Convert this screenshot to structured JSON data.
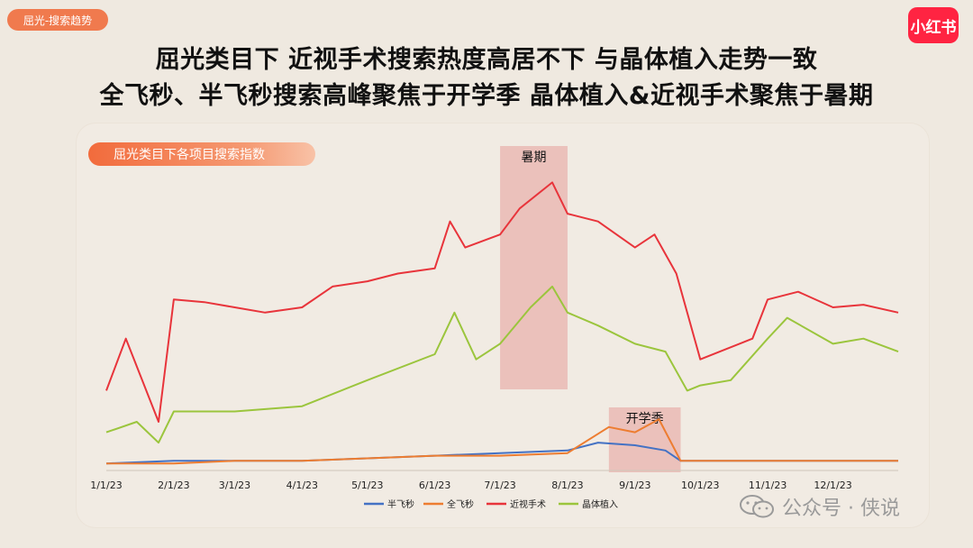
{
  "header": {
    "tag": "屈光-搜索趋势",
    "logo_text": "小红书",
    "title_line1": "屈光类目下 近视手术搜索热度高居不下 与晶体植入走势一致",
    "title_line2": "全飞秒、半飞秒搜索高峰聚焦于开学季 晶体植入&近视手术聚焦于暑期"
  },
  "watermark": {
    "text": "公众号 · 侠说",
    "icon": "wechat-icon"
  },
  "colors": {
    "background": "#efe9e0",
    "accent": "#f07a4e",
    "brand": "#ff2442",
    "highlight": "#e8b3ad"
  },
  "chart_data": {
    "type": "line",
    "title": "屈光类目下各项目搜索指数",
    "x_tick_labels": [
      "1/1/23",
      "2/1/23",
      "3/1/23",
      "4/1/23",
      "5/1/23",
      "6/1/23",
      "7/1/23",
      "8/1/23",
      "9/1/23",
      "10/1/23",
      "11/1/23",
      "12/1/23"
    ],
    "x_range": [
      "2023-01-01",
      "2023-12-31"
    ],
    "grid": false,
    "y_axis_labels": false,
    "legend_position": "bottom",
    "highlight_regions": [
      {
        "label": "暑期",
        "start": "2023-07-01",
        "end": "2023-08-01",
        "color": "#e8b3ad"
      },
      {
        "label": "开学季",
        "start": "2023-08-20",
        "end": "2023-09-22",
        "color": "#e8b3ad"
      }
    ],
    "series": [
      {
        "name": "半飞秒",
        "color": "#4472c4",
        "points": [
          [
            "2023-01-01",
            2
          ],
          [
            "2023-02-01",
            3
          ],
          [
            "2023-03-01",
            3
          ],
          [
            "2023-04-01",
            3
          ],
          [
            "2023-05-01",
            4
          ],
          [
            "2023-06-01",
            5
          ],
          [
            "2023-07-01",
            6
          ],
          [
            "2023-08-01",
            7
          ],
          [
            "2023-08-15",
            10
          ],
          [
            "2023-09-01",
            9
          ],
          [
            "2023-09-15",
            7
          ],
          [
            "2023-09-22",
            3
          ],
          [
            "2023-10-01",
            3
          ],
          [
            "2023-11-01",
            3
          ],
          [
            "2023-12-01",
            3
          ],
          [
            "2023-12-31",
            3
          ]
        ]
      },
      {
        "name": "全飞秒",
        "color": "#ed7d31",
        "points": [
          [
            "2023-01-01",
            2
          ],
          [
            "2023-02-01",
            2
          ],
          [
            "2023-03-01",
            3
          ],
          [
            "2023-04-01",
            3
          ],
          [
            "2023-05-01",
            4
          ],
          [
            "2023-06-01",
            5
          ],
          [
            "2023-07-01",
            5
          ],
          [
            "2023-08-01",
            6
          ],
          [
            "2023-08-20",
            16
          ],
          [
            "2023-09-01",
            14
          ],
          [
            "2023-09-12",
            19
          ],
          [
            "2023-09-22",
            3
          ],
          [
            "2023-10-01",
            3
          ],
          [
            "2023-11-01",
            3
          ],
          [
            "2023-12-01",
            3
          ],
          [
            "2023-12-31",
            3
          ]
        ]
      },
      {
        "name": "近视手术",
        "color": "#e8343b",
        "points": [
          [
            "2023-01-01",
            30
          ],
          [
            "2023-01-10",
            50
          ],
          [
            "2023-01-25",
            18
          ],
          [
            "2023-02-01",
            65
          ],
          [
            "2023-02-15",
            64
          ],
          [
            "2023-03-01",
            62
          ],
          [
            "2023-03-15",
            60
          ],
          [
            "2023-04-01",
            62
          ],
          [
            "2023-04-15",
            70
          ],
          [
            "2023-05-01",
            72
          ],
          [
            "2023-05-15",
            75
          ],
          [
            "2023-06-01",
            77
          ],
          [
            "2023-06-08",
            95
          ],
          [
            "2023-06-15",
            85
          ],
          [
            "2023-07-01",
            90
          ],
          [
            "2023-07-10",
            100
          ],
          [
            "2023-07-25",
            110
          ],
          [
            "2023-08-01",
            98
          ],
          [
            "2023-08-15",
            95
          ],
          [
            "2023-09-01",
            85
          ],
          [
            "2023-09-10",
            90
          ],
          [
            "2023-09-20",
            75
          ],
          [
            "2023-10-01",
            42
          ],
          [
            "2023-10-10",
            45
          ],
          [
            "2023-10-25",
            50
          ],
          [
            "2023-11-01",
            65
          ],
          [
            "2023-11-15",
            68
          ],
          [
            "2023-12-01",
            62
          ],
          [
            "2023-12-15",
            63
          ],
          [
            "2023-12-31",
            60
          ]
        ]
      },
      {
        "name": "晶体植入",
        "color": "#9bc53d",
        "points": [
          [
            "2023-01-01",
            14
          ],
          [
            "2023-01-15",
            18
          ],
          [
            "2023-01-25",
            10
          ],
          [
            "2023-02-01",
            22
          ],
          [
            "2023-03-01",
            22
          ],
          [
            "2023-04-01",
            24
          ],
          [
            "2023-05-01",
            34
          ],
          [
            "2023-06-01",
            44
          ],
          [
            "2023-06-10",
            60
          ],
          [
            "2023-06-20",
            42
          ],
          [
            "2023-07-01",
            48
          ],
          [
            "2023-07-15",
            62
          ],
          [
            "2023-07-25",
            70
          ],
          [
            "2023-08-01",
            60
          ],
          [
            "2023-08-15",
            55
          ],
          [
            "2023-09-01",
            48
          ],
          [
            "2023-09-15",
            45
          ],
          [
            "2023-09-25",
            30
          ],
          [
            "2023-10-01",
            32
          ],
          [
            "2023-10-15",
            34
          ],
          [
            "2023-11-01",
            50
          ],
          [
            "2023-11-10",
            58
          ],
          [
            "2023-12-01",
            48
          ],
          [
            "2023-12-15",
            50
          ],
          [
            "2023-12-31",
            45
          ]
        ]
      }
    ]
  }
}
